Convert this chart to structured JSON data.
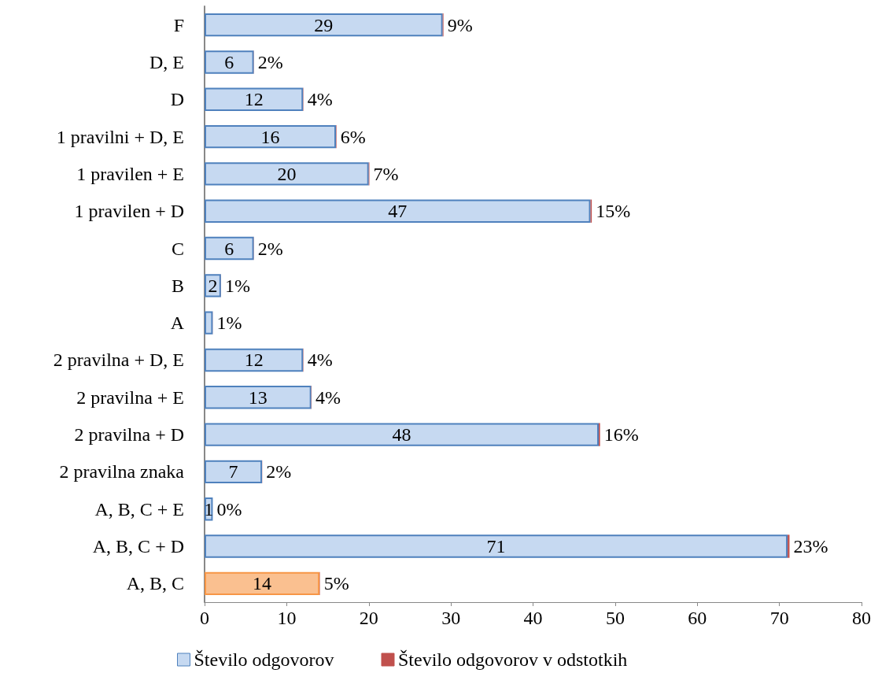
{
  "chart_data": {
    "type": "bar",
    "orientation": "horizontal",
    "stacked": true,
    "categories": [
      "F",
      "D, E",
      "D",
      "1 pravilni + D, E",
      "1 pravilen + E",
      "1 pravilen + D",
      "C",
      "B",
      "A",
      "2 pravilna + D, E",
      "2 pravilna + E",
      "2 pravilna + D",
      "2 pravilna znaka",
      "A, B, C + E",
      "A, B, C + D",
      "A, B, C"
    ],
    "series": [
      {
        "name": "Število odgovorov",
        "color": "#c6d9f1",
        "colors": [
          "#c6d9f1",
          "#c6d9f1",
          "#c6d9f1",
          "#c6d9f1",
          "#c6d9f1",
          "#c6d9f1",
          "#c6d9f1",
          "#c6d9f1",
          "#c6d9f1",
          "#c6d9f1",
          "#c6d9f1",
          "#c6d9f1",
          "#c6d9f1",
          "#c6d9f1",
          "#c6d9f1",
          "#fac090"
        ],
        "values": [
          29,
          6,
          12,
          16,
          20,
          47,
          6,
          2,
          1,
          12,
          13,
          48,
          7,
          1,
          71,
          14
        ],
        "value_labels": [
          "29",
          "6",
          "12",
          "16",
          "20",
          "47",
          "6",
          "2",
          null,
          "12",
          "13",
          "48",
          "7",
          "1",
          "71",
          "14"
        ]
      },
      {
        "name": "Število odgovorov v odstotkih",
        "color": "#c0504d",
        "values": [
          0.09,
          0.02,
          0.04,
          0.06,
          0.07,
          0.15,
          0.02,
          0.01,
          0.01,
          0.04,
          0.04,
          0.16,
          0.02,
          0,
          0.23,
          0.05
        ],
        "value_labels": [
          "9%",
          "2%",
          "4%",
          "6%",
          "7%",
          "15%",
          "2%",
          "1%",
          "1%",
          "4%",
          "4%",
          "16%",
          "2%",
          "0%",
          "23%",
          "5%"
        ]
      }
    ],
    "xlim": [
      0,
      80
    ],
    "xticks": [
      0,
      10,
      20,
      30,
      40,
      50,
      60,
      70,
      80
    ],
    "grid": false,
    "legend": "bottom"
  }
}
